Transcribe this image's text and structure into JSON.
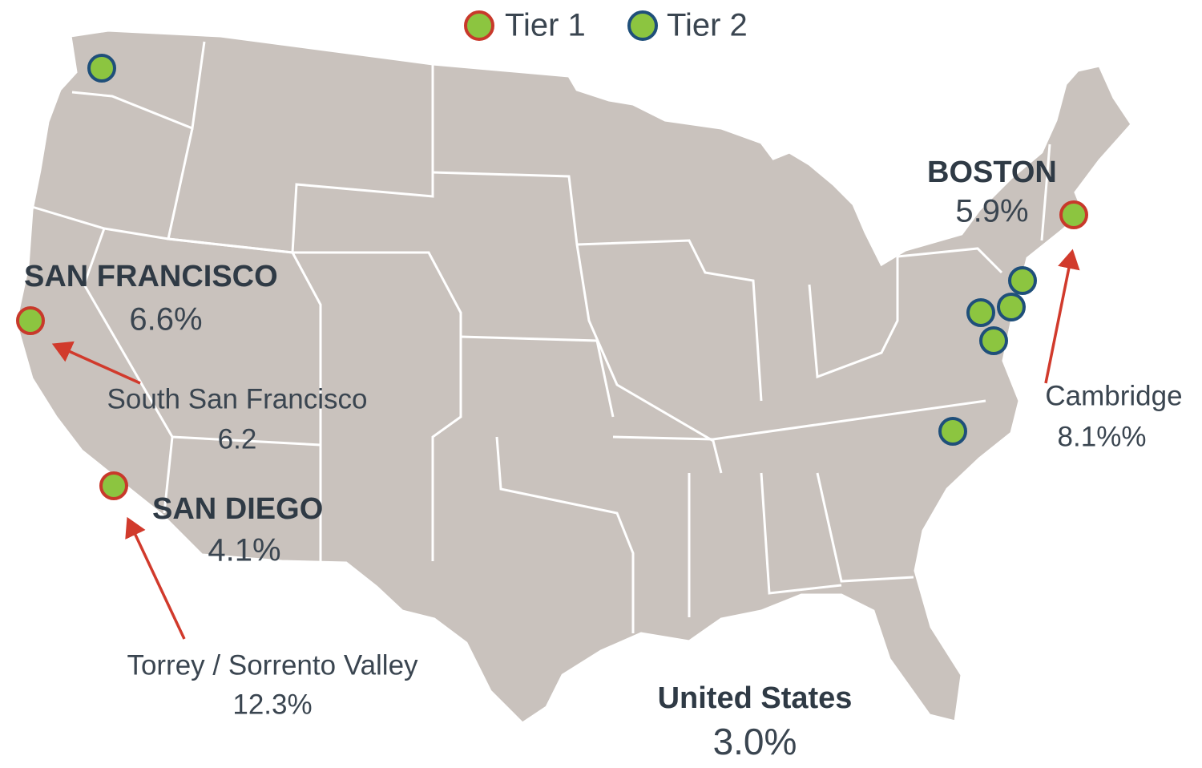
{
  "legend": [
    {
      "label": "Tier 1"
    },
    {
      "label": "Tier 2"
    }
  ],
  "markets": [
    {
      "name": "SAN FRANCISCO",
      "value": "6.6%"
    },
    {
      "name": "SAN DIEGO",
      "value": "4.1%"
    },
    {
      "name": "BOSTON",
      "value": "5.9%"
    }
  ],
  "submarkets": [
    {
      "name": "South San Francisco",
      "value": "6.2"
    },
    {
      "name": "Torrey / Sorrento Valley",
      "value": "12.3%"
    },
    {
      "name": "Cambridge",
      "value": "8.1%%"
    }
  ],
  "national": {
    "name": "United States",
    "value": "3.0%"
  }
}
